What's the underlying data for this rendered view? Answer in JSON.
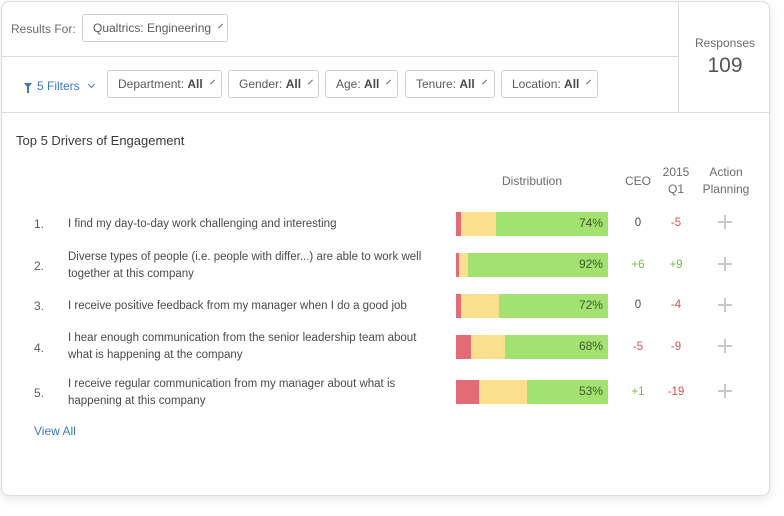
{
  "header": {
    "results_label": "Results For:",
    "results_value": "Qualtrics: Engineering",
    "responses_label": "Responses",
    "responses_value": "109"
  },
  "filters": {
    "summary": "5 Filters",
    "items": [
      {
        "name": "Department:",
        "value": "All"
      },
      {
        "name": "Gender:",
        "value": "All"
      },
      {
        "name": "Age:",
        "value": "All"
      },
      {
        "name": "Tenure:",
        "value": "All"
      },
      {
        "name": "Location:",
        "value": "All"
      }
    ]
  },
  "section": {
    "title": "Top 5 Drivers of Engagement",
    "columns": {
      "distribution": "Distribution",
      "ceo": "CEO",
      "q1_line1": "2015",
      "q1_line2": "Q1",
      "action_line1": "Action",
      "action_line2": "Planning"
    },
    "rows": [
      {
        "num": "1.",
        "text": "I find my day-to-day work challenging and interesting",
        "red": 3,
        "yellow": 23,
        "green": 74,
        "pct": "74%",
        "ceo": "0",
        "q1": "-5"
      },
      {
        "num": "2.",
        "text": "Diverse types of people (i.e. people with differ...) are able to work well together at this company",
        "red": 2,
        "yellow": 6,
        "green": 92,
        "pct": "92%",
        "ceo": "+6",
        "q1": "+9"
      },
      {
        "num": "3.",
        "text": "I receive positive feedback from my manager when I do a good job",
        "red": 3,
        "yellow": 25,
        "green": 72,
        "pct": "72%",
        "ceo": "0",
        "q1": "-4"
      },
      {
        "num": "4.",
        "text": "I hear enough communication from the senior leadership team about what is happening at the company",
        "red": 10,
        "yellow": 22,
        "green": 68,
        "pct": "68%",
        "ceo": "-5",
        "q1": "-9"
      },
      {
        "num": "5.",
        "text": "I receive regular communication from my manager about what is happening at this company",
        "red": 15,
        "yellow": 32,
        "green": 53,
        "pct": "53%",
        "ceo": "+1",
        "q1": "-19"
      }
    ],
    "view_all": "View All"
  },
  "colors": {
    "red": "#e36b77",
    "yellow": "#f8e08e",
    "green": "#a3e271",
    "link": "#3a78c3",
    "negative": "#d9534f",
    "positive": "#6cc24a"
  }
}
